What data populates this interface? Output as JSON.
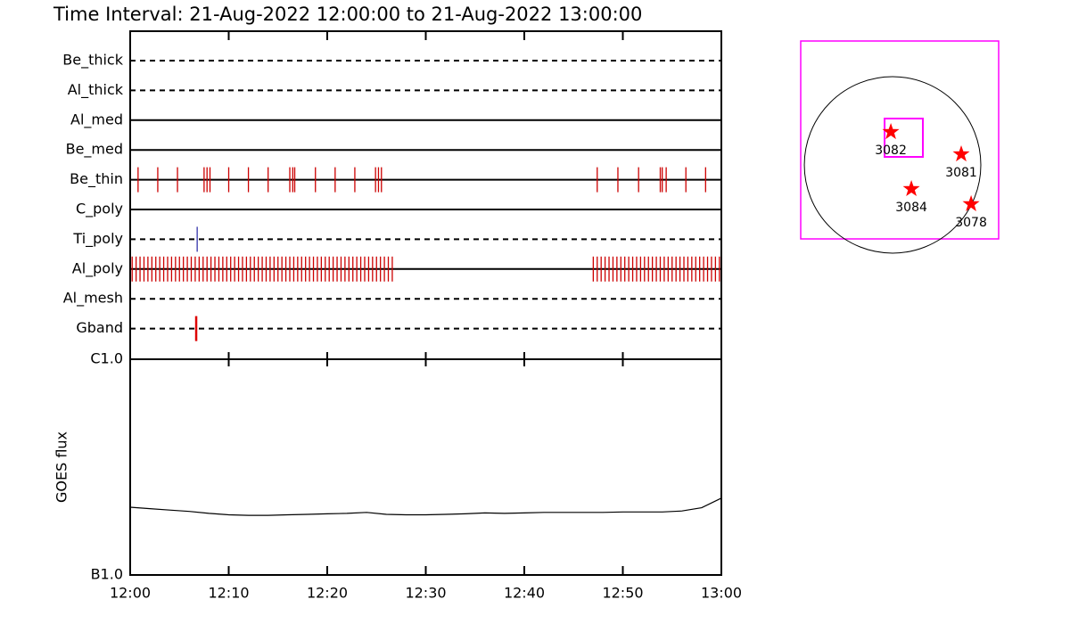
{
  "chart_data": [
    {
      "type": "timeline",
      "title": "Time Interval: 21-Aug-2022 12:00:00 to 21-Aug-2022 13:00:00",
      "xlim": [
        0,
        60
      ],
      "rows": [
        {
          "name": "Be_thick",
          "line": "dashed",
          "color": "#cc0000",
          "events": []
        },
        {
          "name": "Al_thick",
          "line": "dashed",
          "color": "#cc0000",
          "events": []
        },
        {
          "name": "Al_med",
          "line": "solid",
          "color": "#cc0000",
          "events": []
        },
        {
          "name": "Be_med",
          "line": "solid",
          "color": "#cc0000",
          "events": []
        },
        {
          "name": "Be_thin",
          "line": "solid",
          "color": "#cc0000",
          "events": [
            0.8,
            2.8,
            4.8,
            7.5,
            7.8,
            8.1,
            10.0,
            12.0,
            14.0,
            16.2,
            16.5,
            16.7,
            18.8,
            20.8,
            22.8,
            24.9,
            25.2,
            25.5,
            47.4,
            49.5,
            51.6,
            53.8,
            54.0,
            54.4,
            56.4,
            58.4
          ]
        },
        {
          "name": "C_poly",
          "line": "solid",
          "color": "#cc0000",
          "events": []
        },
        {
          "name": "Ti_poly",
          "line": "dashed",
          "color": "#3333aa",
          "events": [
            6.8
          ]
        },
        {
          "name": "Al_poly",
          "line": "solid",
          "color": "#cc0000",
          "events": [
            0.2,
            0.6,
            1.0,
            1.4,
            1.8,
            2.2,
            2.6,
            3.0,
            3.4,
            3.8,
            4.2,
            4.6,
            5.0,
            5.4,
            5.8,
            6.2,
            6.6,
            7.0,
            7.4,
            7.8,
            8.2,
            8.6,
            9.0,
            9.4,
            9.8,
            10.2,
            10.6,
            11.0,
            11.4,
            11.8,
            12.2,
            12.6,
            13.0,
            13.4,
            13.8,
            14.2,
            14.6,
            15.0,
            15.4,
            15.8,
            16.2,
            16.6,
            17.0,
            17.4,
            17.8,
            18.2,
            18.6,
            19.0,
            19.4,
            19.8,
            20.2,
            20.6,
            21.0,
            21.4,
            21.8,
            22.2,
            22.6,
            23.0,
            23.4,
            23.8,
            24.2,
            24.6,
            25.0,
            25.4,
            25.8,
            26.2,
            26.6,
            47.0,
            47.4,
            47.8,
            48.2,
            48.6,
            49.0,
            49.4,
            49.8,
            50.2,
            50.6,
            51.0,
            51.4,
            51.8,
            52.2,
            52.6,
            53.0,
            53.4,
            53.8,
            54.2,
            54.6,
            55.0,
            55.4,
            55.8,
            56.2,
            56.6,
            57.0,
            57.4,
            57.8,
            58.2,
            58.6,
            59.0,
            59.4,
            59.8
          ]
        },
        {
          "name": "Al_mesh",
          "line": "dashed",
          "color": "#cc0000",
          "events": []
        },
        {
          "name": "Gband",
          "line": "dashed",
          "color": "#dd0000",
          "events": [
            6.7
          ]
        }
      ]
    },
    {
      "type": "line",
      "y_label": "GOES flux",
      "log_scale": true,
      "color": "#000000",
      "xlim": [
        0,
        60
      ],
      "ylim": [
        1e-07,
        1e-06
      ],
      "yticks": [
        {
          "value": 1e-06,
          "label": "C1.0"
        },
        {
          "value": 1e-07,
          "label": "B1.0"
        }
      ],
      "xticks": [
        {
          "value": 0,
          "label": "12:00"
        },
        {
          "value": 10,
          "label": "12:10"
        },
        {
          "value": 20,
          "label": "12:20"
        },
        {
          "value": 30,
          "label": "12:30"
        },
        {
          "value": 40,
          "label": "12:40"
        },
        {
          "value": 50,
          "label": "12:50"
        },
        {
          "value": 60,
          "label": "13:00"
        }
      ],
      "x": [
        0,
        2,
        4,
        6,
        8,
        10,
        12,
        14,
        16,
        18,
        20,
        22,
        24,
        26,
        28,
        30,
        32,
        34,
        36,
        38,
        40,
        42,
        44,
        46,
        48,
        50,
        52,
        54,
        56,
        58,
        60
      ],
      "values": [
        2.06e-07,
        2.03e-07,
        2e-07,
        1.97e-07,
        1.93e-07,
        1.9e-07,
        1.89e-07,
        1.89e-07,
        1.9e-07,
        1.91e-07,
        1.92e-07,
        1.93e-07,
        1.95e-07,
        1.91e-07,
        1.9e-07,
        1.9e-07,
        1.91e-07,
        1.92e-07,
        1.94e-07,
        1.93e-07,
        1.94e-07,
        1.95e-07,
        1.95e-07,
        1.95e-07,
        1.95e-07,
        1.96e-07,
        1.96e-07,
        1.96e-07,
        1.98e-07,
        2.05e-07,
        2.27e-07
      ]
    },
    {
      "type": "map",
      "xlim": [
        -989,
        1142
      ],
      "ylim": [
        -797,
        1334
      ],
      "sun_radius": 950,
      "color": "#ff00ff",
      "fov": {
        "x": [
          -86,
          326
        ],
        "y": [
          86,
          499
        ]
      },
      "regions": [
        {
          "name": "3082",
          "x": -19,
          "y": 355
        },
        {
          "name": "3081",
          "x": 739,
          "y": 115
        },
        {
          "name": "3084",
          "x": 202,
          "y": -259
        },
        {
          "name": "3078",
          "x": 845,
          "y": -422
        }
      ]
    }
  ]
}
